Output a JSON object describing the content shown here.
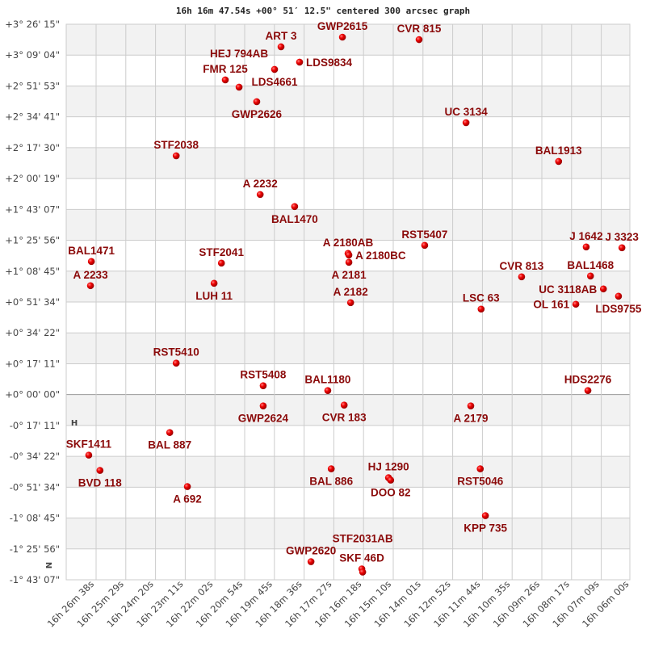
{
  "chart_data": {
    "type": "scatter",
    "title": "16h 16m 47.54s +00° 51′ 12.5\" centered 300 arcsec graph",
    "center": {
      "ra": "16h 16m 47.54s",
      "dec": "+00° 51′ 12.5\""
    },
    "field_arcsec": 300,
    "xlim_ra": [
      "16 27 07",
      "16 06 00"
    ],
    "ylim_dec": [
      "+3 26 15",
      "-1 43 07"
    ],
    "grid": true,
    "orientation_marks": [
      "H",
      "N"
    ],
    "x_ticks": [
      "16h 26m 38s",
      "16h 25m 29s",
      "16h 24m 20s",
      "16h 23m 11s",
      "16h 22m 02s",
      "16h 20m 54s",
      "16h 19m 45s",
      "16h 18m 36s",
      "16h 17m 27s",
      "16h 16m 18s",
      "16h 15m 10s",
      "16h 14m 01s",
      "16h 12m 52s",
      "16h 11m 44s",
      "16h 10m 35s",
      "16h 09m 26s",
      "16h 08m 17s",
      "16h 07m 09s",
      "16h 06m 00s"
    ],
    "y_ticks": [
      "+3° 26' 15\"",
      "+3° 09' 04\"",
      "+2° 51' 53\"",
      "+2° 34' 41\"",
      "+2° 17' 30\"",
      "+2° 00' 19\"",
      "+1° 43' 07\"",
      "+1° 25' 56\"",
      "+1° 08' 45\"",
      "+0° 51' 34\"",
      "+0° 34' 22\"",
      "+0° 17' 11\"",
      "+0° 00' 00\"",
      "-0° 17' 11\"",
      "-0° 34' 22\"",
      "-0° 51' 34\"",
      "-1° 08' 45\"",
      "-1° 25' 56\"",
      "-1° 43' 07\""
    ],
    "colors": {
      "star": "#dd0000",
      "label": "#8b0a0a",
      "band": "#f2f2f2",
      "grid": "#cccccc"
    },
    "stars": [
      {
        "name": "ART   3",
        "ra": "16 19 28.6",
        "dec": "+3 13 40"
      },
      {
        "name": "GWP2615",
        "ra": "16 17 06",
        "dec": "+3 19 03"
      },
      {
        "name": "CVR 815",
        "ra": "16 14 08",
        "dec": "+3 17 42"
      },
      {
        "name": "LDS9834",
        "ra": "16 18 45.5",
        "dec": "+3 05 08"
      },
      {
        "name": "LDS4661",
        "ra": "16 19 43.6",
        "dec": "+3 01 05"
      },
      {
        "name": "FMR 125",
        "ra": "16 21 38",
        "dec": "+2 55 14"
      },
      {
        "name": "HEJ 794AB",
        "ra": "16 21 06",
        "dec": "+2 51 12"
      },
      {
        "name": "GWP2626",
        "ra": "16 20 25",
        "dec": "+2 43 06"
      },
      {
        "name": "UC 3134",
        "ra": "16 12 19",
        "dec": "+2 31 26"
      },
      {
        "name": "STF2038",
        "ra": "16 23 32",
        "dec": "+2 13 00"
      },
      {
        "name": "BAL1913",
        "ra": "16 08 44",
        "dec": "+2 09 51"
      },
      {
        "name": "A  2232",
        "ra": "16 20 17",
        "dec": "+1 51 26"
      },
      {
        "name": "BAL1470",
        "ra": "16 18 57",
        "dec": "+1 44 42"
      },
      {
        "name": "RST5407",
        "ra": "16 13 55",
        "dec": "+1 23 08"
      },
      {
        "name": "A  2180AB",
        "ra": "16 16 53",
        "dec": "+1 18 38"
      },
      {
        "name": "A  2180BC",
        "ra": "16 16 51",
        "dec": "+1 17 44"
      },
      {
        "name": "A  2181",
        "ra": "16 16 51",
        "dec": "+1 13 41"
      },
      {
        "name": "J  1642",
        "ra": "16 07 40",
        "dec": "+1 22 14"
      },
      {
        "name": "J  3323",
        "ra": "16 06 17",
        "dec": "+1 21 47"
      },
      {
        "name": "STF2041",
        "ra": "16 21 47",
        "dec": "+1 13 14"
      },
      {
        "name": "BAL1471",
        "ra": "16 26 49",
        "dec": "+1 14 08"
      },
      {
        "name": "CVR 813",
        "ra": "16 10 10",
        "dec": "+1 05 36"
      },
      {
        "name": "BAL1468",
        "ra": "16 07 30",
        "dec": "+1 06 03"
      },
      {
        "name": "UC 3118AB",
        "ra": "16 07 00",
        "dec": "+0 58 52"
      },
      {
        "name": "LDS9755",
        "ra": "16 06 25",
        "dec": "+0 54 49"
      },
      {
        "name": "OL  161",
        "ra": "16 08 04",
        "dec": "+0 50 20"
      },
      {
        "name": "A  2233",
        "ra": "16 26 51",
        "dec": "+1 00 40"
      },
      {
        "name": "LUH  11",
        "ra": "16 22 04",
        "dec": "+1 02 00"
      },
      {
        "name": "A  2182",
        "ra": "16 16 47",
        "dec": "+0 51 13"
      },
      {
        "name": "LSC  63",
        "ra": "16 11 44",
        "dec": "+0 47 38"
      },
      {
        "name": "RST5410",
        "ra": "16 23 32",
        "dec": "+0 17 31"
      },
      {
        "name": "RST5408",
        "ra": "16 20 10",
        "dec": "+0 04 57"
      },
      {
        "name": "BAL1180",
        "ra": "16 17 40",
        "dec": "+0 02 15"
      },
      {
        "name": "HDS2276",
        "ra": "16 07 36",
        "dec": "+0 02 15"
      },
      {
        "name": "GWP2624",
        "ra": "16 20 10",
        "dec": "-0 06 17"
      },
      {
        "name": "CVR 183",
        "ra": "16 17 02",
        "dec": "-0 05 50"
      },
      {
        "name": "A  2179",
        "ra": "16 12 08",
        "dec": "-0 06 17"
      },
      {
        "name": "BAL 887",
        "ra": "16 23 47",
        "dec": "-0 21 07"
      },
      {
        "name": "SKF1411",
        "ra": "16 26 55",
        "dec": "-0 33 42"
      },
      {
        "name": "BVD 118",
        "ra": "16 26 29",
        "dec": "-0 42 14"
      },
      {
        "name": "BAL 886",
        "ra": "16 17 32",
        "dec": "-0 41 20"
      },
      {
        "name": "RST5046",
        "ra": "16 11 46",
        "dec": "-0 41 20"
      },
      {
        "name": "HJ 1290",
        "ra": "16 15 19",
        "dec": "-0 46 17"
      },
      {
        "name": "DOO  82",
        "ra": "16 15 14",
        "dec": "-0 47 38"
      },
      {
        "name": "A   692",
        "ra": "16 23 06",
        "dec": "-0 51 13"
      },
      {
        "name": "KPP 735",
        "ra": "16 11 34",
        "dec": "-1 07 24"
      },
      {
        "name": "GWP2620",
        "ra": "16 18 19",
        "dec": "-1 33 01"
      },
      {
        "name": "SKF  46D",
        "ra": "16 16 21",
        "dec": "-1 37 03"
      },
      {
        "name": "STF2031AB",
        "ra": "16 16 19",
        "dec": "-1 38 51"
      }
    ]
  }
}
